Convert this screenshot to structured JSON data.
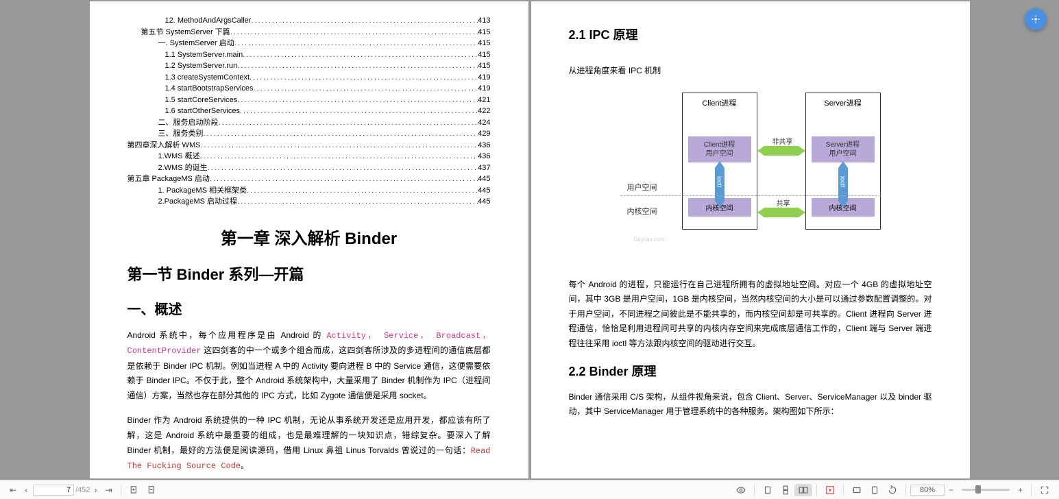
{
  "toc": [
    {
      "indent": 3,
      "text": "12. MethodAndArgsCaller",
      "page": "413"
    },
    {
      "indent": 1,
      "text": "第五节 SystemServer 下篇",
      "page": "415"
    },
    {
      "indent": 2,
      "text": "一. SystemServer 启动",
      "page": "415"
    },
    {
      "indent": 3,
      "text": "1.1 SystemServer.main",
      "page": "415"
    },
    {
      "indent": 3,
      "text": "1.2 SystemServer.run",
      "page": "415"
    },
    {
      "indent": 3,
      "text": "1.3 createSystemContext",
      "page": "419"
    },
    {
      "indent": 3,
      "text": "1.4 startBootstrapServices",
      "page": "419"
    },
    {
      "indent": 3,
      "text": "1.5 startCoreServices",
      "page": "421"
    },
    {
      "indent": 3,
      "text": "1.6 startOtherServices",
      "page": "422"
    },
    {
      "indent": 2,
      "text": "二、服务启动阶段",
      "page": "424"
    },
    {
      "indent": 2,
      "text": "三、服务类别",
      "page": "429"
    },
    {
      "indent": 0,
      "text": "第四章深入解析 WMS",
      "page": "436"
    },
    {
      "indent": 2,
      "text": "1.WMS 概述",
      "page": "436"
    },
    {
      "indent": 2,
      "text": "2.WMS 的诞生",
      "page": "437"
    },
    {
      "indent": 0,
      "text": "第五章 PackageMS 启动",
      "page": "445"
    },
    {
      "indent": 2,
      "text": "1. PackageMS 相关框架类",
      "page": "445"
    },
    {
      "indent": 2,
      "text": "2.PackageMS 启动过程",
      "page": "445"
    }
  ],
  "left": {
    "chapter": "第一章  深入解析 Binder",
    "section": "第一节 Binder 系列—开篇",
    "sub": "一、概述",
    "p1_pre": "Android 系统中，每个应用程序是由 Android 的 ",
    "p1_codes": "Activity， Service， Broadcast， ContentProvider",
    "p1_post": " 这四剑客的中一个或多个组合而成，这四剑客所涉及的多进程间的通信底层都是依赖于 Binder IPC 机制。例如当进程 A 中的 Activity 要向进程 B 中的 Service 通信，这便需要依赖于 Binder IPC。不仅于此，整个 Android 系统架构中，大量采用了 Binder 机制作为 IPC（进程间通信）方案，当然也存在部分其他的 IPC 方式，比如 Zygote 通信便是采用 socket。",
    "p2_pre": "Binder 作为 Android 系统提供的一种 IPC 机制，无论从事系统开发还是应用开发，都应该有所了解，这是 Android 系统中最重要的组成，也是最难理解的一块知识点，错综复杂。要深入了解 Binder 机制，最好的方法便是阅读源码，借用 Linux 鼻祖 Linus Torvalds 曾说过的一句话：",
    "p2_code": "Read The Fucking Source Code",
    "p2_end": "。"
  },
  "right": {
    "h1": "2.1 IPC 原理",
    "intro": "从进程角度来看 IPC 机制",
    "diagram": {
      "client_title": "Client进程",
      "server_title": "Server进程",
      "client_user": "Client进程\n用户空间",
      "server_user": "Server进程\n用户空间",
      "kernel": "内核空间",
      "not_shared": "非共享",
      "shared": "共享",
      "ioctl": "ioctl",
      "user_space": "用户空间",
      "kernel_space": "内核空间",
      "watermark": "Gityuan.com",
      "colors": {
        "box_fill": "#b8a9d9",
        "arrow_h": "#8fd14f",
        "arrow_v": "#5b9bd5"
      }
    },
    "p1": "每个 Android 的进程，只能运行在自己进程所拥有的虚拟地址空间。对应一个 4GB 的虚拟地址空间，其中 3GB 是用户空间，1GB 是内核空间，当然内核空间的大小是可以通过参数配置调整的。对于用户空间，不同进程之间彼此是不能共享的，而内核空间却是可共享的。Client 进程向 Server 进程通信，恰恰是利用进程间可共享的内核内存空间来完成底层通信工作的，Client 端与 Server 端进程往往采用 ioctl 等方法跟内核空间的驱动进行交互。",
    "h2": "2.2 Binder 原理",
    "p2": "Binder 通信采用 C/S 架构，从组件视角来说，包含 Client、Server、ServiceManager 以及 binder 驱动，其中 ServiceManager 用于管理系统中的各种服务。架构图如下所示："
  },
  "toolbar": {
    "current_page": "7",
    "total_pages": "/452",
    "zoom": "80%"
  }
}
